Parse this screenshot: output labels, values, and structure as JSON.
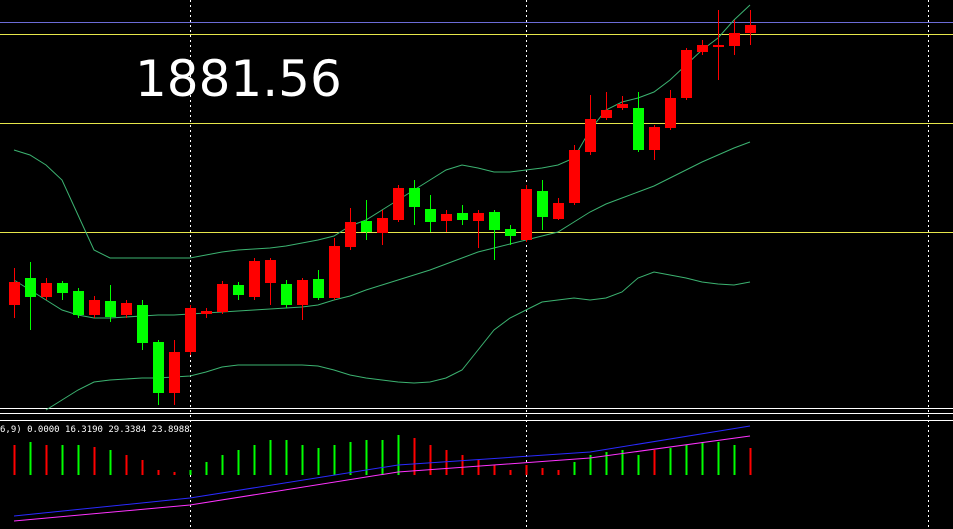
{
  "chart_data": [
    {
      "type": "candlestick",
      "title": "1881.56",
      "ylim": [
        0,
        410
      ],
      "up_color": "#ff0000",
      "down_color": "#00ff00",
      "open": [
        105,
        132,
        113,
        127,
        119,
        95,
        109,
        95,
        105,
        68,
        17,
        58,
        96,
        98,
        125,
        113,
        127,
        126,
        105,
        131,
        112,
        163,
        189,
        177,
        190,
        222,
        201,
        189,
        197,
        189,
        198,
        181,
        170,
        219,
        191,
        207,
        258,
        292,
        302,
        302,
        260,
        282,
        312,
        358,
        363,
        364,
        377
      ],
      "high": [
        142,
        148,
        132,
        129,
        122,
        114,
        125,
        110,
        110,
        70,
        70,
        105,
        102,
        129,
        128,
        152,
        152,
        130,
        132,
        140,
        172,
        202,
        210,
        200,
        225,
        230,
        215,
        200,
        205,
        200,
        200,
        185,
        225,
        230,
        212,
        265,
        315,
        318,
        314,
        318,
        285,
        320,
        362,
        370,
        400,
        390,
        400
      ],
      "low": [
        92,
        80,
        110,
        110,
        92,
        92,
        88,
        92,
        60,
        5,
        5,
        55,
        92,
        96,
        110,
        110,
        105,
        102,
        90,
        110,
        110,
        160,
        170,
        165,
        188,
        185,
        178,
        178,
        185,
        162,
        150,
        165,
        168,
        180,
        190,
        205,
        255,
        290,
        300,
        258,
        250,
        280,
        310,
        355,
        330,
        355,
        365
      ],
      "close": [
        128,
        113,
        127,
        117,
        95,
        110,
        93,
        107,
        67,
        17,
        58,
        102,
        99,
        126,
        115,
        149,
        150,
        105,
        130,
        112,
        164,
        188,
        178,
        192,
        222,
        203,
        188,
        196,
        190,
        197,
        180,
        174,
        221,
        193,
        207,
        260,
        291,
        300,
        306,
        260,
        283,
        312,
        360,
        365,
        365,
        377,
        385
      ],
      "bands": [
        {
          "color": "#3cb371",
          "values": [
            260,
            255,
            245,
            230,
            195,
            160,
            152,
            152,
            152,
            152,
            152,
            152,
            155,
            158,
            160,
            161,
            162,
            164,
            167,
            170,
            174,
            184,
            190,
            200,
            210,
            220,
            230,
            240,
            245,
            242,
            238,
            238,
            240,
            242,
            245,
            252,
            280,
            300,
            308,
            312,
            318,
            330,
            345,
            360,
            372,
            390,
            405
          ]
        },
        {
          "color": "#3cb371",
          "values": [
            130,
            120,
            110,
            100,
            95,
            92,
            92,
            93,
            94,
            95,
            95,
            96,
            97,
            98,
            99,
            100,
            101,
            102,
            103,
            105,
            110,
            114,
            120,
            125,
            130,
            135,
            140,
            146,
            152,
            158,
            162,
            166,
            170,
            174,
            178,
            188,
            198,
            206,
            212,
            218,
            224,
            232,
            240,
            248,
            255,
            262,
            268
          ]
        },
        {
          "color": "#3cb371",
          "values": [
            null,
            null,
            0,
            10,
            20,
            28,
            30,
            31,
            32,
            32,
            33,
            34,
            38,
            43,
            45,
            45,
            45,
            45,
            45,
            44,
            40,
            35,
            32,
            30,
            28,
            27,
            28,
            32,
            40,
            60,
            80,
            92,
            100,
            108,
            110,
            112,
            110,
            112,
            118,
            132,
            138,
            135,
            132,
            128,
            126,
            125,
            128
          ]
        }
      ],
      "levels": [
        {
          "value": 388,
          "color": "#6b6bd6"
        },
        {
          "value": 376,
          "color": "#e6e64a"
        },
        {
          "value": 287,
          "color": "#e6e64a"
        },
        {
          "value": 178,
          "color": "#e6e64a"
        }
      ]
    },
    {
      "type": "indicator",
      "title": "6,9) 0.0000 16.3190 29.3384 23.8988",
      "ylim": [
        -54,
        54
      ],
      "values": [
        30,
        33,
        30,
        30,
        30,
        28,
        25,
        20,
        15,
        5,
        3,
        5,
        13,
        20,
        25,
        30,
        35,
        35,
        30,
        27,
        30,
        33,
        35,
        35,
        40,
        37,
        30,
        25,
        20,
        15,
        10,
        5,
        10,
        7,
        5,
        13,
        20,
        23,
        25,
        20,
        25,
        27,
        30,
        33,
        33,
        30,
        27
      ],
      "bar_colors": [
        "#ff0000",
        "#00ff00",
        "#ff0000",
        "#00ff00",
        "#00ff00",
        "#ff0000",
        "#00ff00",
        "#ff0000",
        "#ff0000",
        "#ff0000",
        "#ff0000",
        "#00ff00",
        "#00ff00",
        "#00ff00",
        "#00ff00",
        "#00ff00",
        "#00ff00",
        "#00ff00",
        "#00ff00",
        "#00ff00",
        "#00ff00",
        "#00ff00",
        "#00ff00",
        "#00ff00",
        "#00ff00",
        "#ff0000",
        "#ff0000",
        "#ff0000",
        "#ff0000",
        "#ff0000",
        "#ff0000",
        "#ff0000",
        "#ff0000",
        "#ff0000",
        "#ff0000",
        "#00ff00",
        "#00ff00",
        "#00ff00",
        "#00ff00",
        "#00ff00",
        "#ff0000",
        "#00ff00",
        "#00ff00",
        "#00ff00",
        "#00ff00",
        "#00ff00",
        "#ff0000"
      ],
      "series": [
        {
          "color": "#2a2aff",
          "x": [
            0,
            11,
            24,
            36,
            46
          ],
          "values": [
            -41,
            -23,
            10,
            23,
            49
          ]
        },
        {
          "color": "#ff33ff",
          "x": [
            0,
            11,
            24,
            36,
            46
          ],
          "values": [
            -46,
            -30,
            3,
            17,
            39
          ]
        }
      ]
    }
  ]
}
